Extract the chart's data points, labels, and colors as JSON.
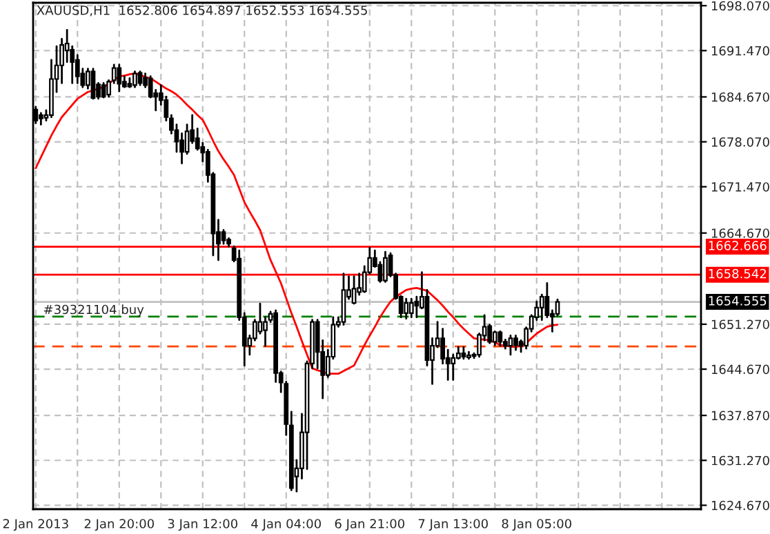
{
  "chart_data": {
    "type": "candlestick",
    "title": "XAUUSD,H1  1652.806 1654.897 1652.553 1654.555",
    "categories": [
      "2 Jan 2013",
      null,
      null,
      null,
      null,
      null,
      null,
      null,
      null,
      null,
      null,
      null,
      null,
      null,
      null,
      null,
      "2 Jan 20:00",
      null,
      null,
      null,
      null,
      null,
      null,
      null,
      null,
      null,
      null,
      null,
      null,
      null,
      null,
      null,
      "3 Jan 12:00",
      null,
      null,
      null,
      null,
      null,
      null,
      null,
      null,
      null,
      null,
      null,
      null,
      null,
      null,
      null,
      "4 Jan 04:00",
      null,
      null,
      null,
      null,
      null,
      null,
      null,
      null,
      null,
      null,
      null,
      null,
      null,
      null,
      null,
      "6 Jan 21:00",
      null,
      null,
      null,
      null,
      null,
      null,
      null,
      null,
      null,
      null,
      null,
      null,
      null,
      null,
      null,
      "7 Jan 13:00",
      null,
      null,
      null,
      null,
      null,
      null,
      null,
      null,
      null,
      null,
      null,
      null,
      null,
      null,
      null,
      "8 Jan 05:00",
      null,
      null,
      null,
      null,
      null,
      null,
      null,
      null,
      null,
      null,
      null,
      null,
      null,
      null,
      null,
      null,
      null,
      null,
      null,
      null,
      null,
      null,
      null,
      null,
      null,
      null,
      null,
      null,
      null,
      null,
      null
    ],
    "ohlc": [
      [
        1682.8,
        1683.2,
        1680.8,
        1681.2
      ],
      [
        1682.0,
        1682.3,
        1680.6,
        1681.5
      ],
      [
        1681.6,
        1682.7,
        1681.2,
        1682.0
      ],
      [
        1682.0,
        1690.1,
        1681.7,
        1687.3
      ],
      [
        1687.3,
        1692.1,
        1685.4,
        1689.3
      ],
      [
        1689.3,
        1693.2,
        1686.7,
        1692.3
      ],
      [
        1691.5,
        1694.5,
        1689.8,
        1692.5
      ],
      [
        1691.6,
        1692.1,
        1686.7,
        1689.8
      ],
      [
        1690.1,
        1690.8,
        1686.7,
        1687.7
      ],
      [
        1688.1,
        1688.8,
        1686.1,
        1686.4
      ],
      [
        1686.4,
        1688.8,
        1685.9,
        1688.4
      ],
      [
        1688.4,
        1688.8,
        1684.4,
        1684.5
      ],
      [
        1686.5,
        1686.7,
        1684.4,
        1684.7
      ],
      [
        1686.4,
        1686.7,
        1684.6,
        1684.7
      ],
      [
        1685.0,
        1687.1,
        1684.7,
        1686.9
      ],
      [
        1687.1,
        1689.4,
        1686.7,
        1688.9
      ],
      [
        1688.9,
        1689.4,
        1685.5,
        1686.6
      ],
      [
        1686.9,
        1687.7,
        1686.1,
        1686.2
      ],
      [
        1686.6,
        1687.4,
        1686.1,
        1686.2
      ],
      [
        1686.4,
        1688.4,
        1686.1,
        1688.1
      ],
      [
        1688.2,
        1688.4,
        1686.4,
        1686.7
      ],
      [
        1687.5,
        1688.1,
        1686.1,
        1686.4
      ],
      [
        1687.4,
        1687.7,
        1684.6,
        1684.7
      ],
      [
        1685.2,
        1685.7,
        1682.7,
        1684.7
      ],
      [
        1685.2,
        1686.4,
        1683.5,
        1684.2
      ],
      [
        1684.2,
        1684.7,
        1681.2,
        1681.7
      ],
      [
        1681.5,
        1682.0,
        1679.3,
        1679.8
      ],
      [
        1679.8,
        1680.6,
        1676.6,
        1678.1
      ],
      [
        1678.3,
        1679.3,
        1674.9,
        1676.6
      ],
      [
        1676.6,
        1680.6,
        1676.3,
        1679.6
      ],
      [
        1679.8,
        1682.0,
        1677.9,
        1678.2
      ],
      [
        1678.6,
        1680.0,
        1676.9,
        1677.1
      ],
      [
        1677.3,
        1677.9,
        1675.2,
        1676.5
      ],
      [
        1676.6,
        1676.9,
        1672.2,
        1673.2
      ],
      [
        1673.3,
        1673.5,
        1661.4,
        1664.6
      ],
      [
        1664.8,
        1666.6,
        1660.7,
        1663.1
      ],
      [
        1664.8,
        1665.1,
        1663.1,
        1663.6
      ],
      [
        1663.7,
        1663.9,
        1662.7,
        1663.1
      ],
      [
        1662.4,
        1662.7,
        1660.5,
        1660.7
      ],
      [
        1660.9,
        1662.1,
        1651.9,
        1652.3
      ],
      [
        1652.3,
        1652.9,
        1645.2,
        1648.1
      ],
      [
        1648.1,
        1649.6,
        1646.8,
        1649.2
      ],
      [
        1649.2,
        1651.9,
        1648.9,
        1651.6
      ],
      [
        1650.2,
        1654.3,
        1649.9,
        1651.6
      ],
      [
        1650.4,
        1652.3,
        1648.1,
        1651.6
      ],
      [
        1651.9,
        1653.1,
        1651.6,
        1652.8
      ],
      [
        1652.9,
        1653.3,
        1642.8,
        1644.1
      ],
      [
        1644.1,
        1644.3,
        1641.3,
        1642.7
      ],
      [
        1642.5,
        1642.8,
        1635.0,
        1636.6
      ],
      [
        1636.4,
        1638.4,
        1626.9,
        1627.2
      ],
      [
        1628.9,
        1631.3,
        1626.7,
        1630.1
      ],
      [
        1630.1,
        1638.1,
        1628.6,
        1635.4
      ],
      [
        1635.4,
        1645.8,
        1630.0,
        1645.5
      ],
      [
        1645.5,
        1651.9,
        1644.8,
        1651.6
      ],
      [
        1651.6,
        1651.9,
        1644.8,
        1647.2
      ],
      [
        1647.2,
        1648.9,
        1640.4,
        1643.8
      ],
      [
        1643.8,
        1647.5,
        1643.5,
        1646.5
      ],
      [
        1646.5,
        1652.3,
        1646.2,
        1651.2
      ],
      [
        1651.2,
        1652.3,
        1650.9,
        1651.6
      ],
      [
        1651.6,
        1658.7,
        1651.2,
        1656.3
      ],
      [
        1655.3,
        1658.3,
        1655.0,
        1656.3
      ],
      [
        1654.4,
        1658.3,
        1654.3,
        1656.5
      ],
      [
        1656.0,
        1658.7,
        1655.6,
        1656.6
      ],
      [
        1656.1,
        1659.8,
        1656.0,
        1658.9
      ],
      [
        1658.9,
        1662.5,
        1658.7,
        1661.0
      ],
      [
        1661.0,
        1662.1,
        1659.7,
        1659.8
      ],
      [
        1660.0,
        1660.4,
        1657.5,
        1657.7
      ],
      [
        1657.7,
        1661.9,
        1657.5,
        1661.0
      ],
      [
        1661.4,
        1661.7,
        1658.3,
        1658.5
      ],
      [
        1658.5,
        1658.7,
        1655.0,
        1655.1
      ],
      [
        1655.3,
        1655.4,
        1652.3,
        1652.9
      ],
      [
        1652.9,
        1655.0,
        1652.1,
        1654.4
      ],
      [
        1652.9,
        1655.0,
        1652.3,
        1654.4
      ],
      [
        1654.6,
        1655.3,
        1652.3,
        1654.0
      ],
      [
        1653.7,
        1658.9,
        1653.6,
        1655.3
      ],
      [
        1655.3,
        1656.3,
        1645.2,
        1646.0
      ],
      [
        1646.0,
        1649.2,
        1642.5,
        1648.1
      ],
      [
        1648.1,
        1651.6,
        1647.9,
        1649.2
      ],
      [
        1649.2,
        1650.6,
        1645.5,
        1646.2
      ],
      [
        1646.3,
        1647.5,
        1643.1,
        1645.5
      ],
      [
        1645.5,
        1646.8,
        1643.1,
        1646.3
      ],
      [
        1646.3,
        1647.9,
        1646.2,
        1647.0
      ],
      [
        1647.0,
        1647.9,
        1646.2,
        1646.5
      ],
      [
        1646.4,
        1647.2,
        1646.2,
        1646.7
      ],
      [
        1646.8,
        1647.0,
        1646.3,
        1646.6
      ],
      [
        1646.8,
        1649.9,
        1646.5,
        1649.7
      ],
      [
        1649.6,
        1652.6,
        1648.9,
        1650.9
      ],
      [
        1651.0,
        1651.2,
        1648.5,
        1648.7
      ],
      [
        1648.7,
        1650.2,
        1648.2,
        1650.1
      ],
      [
        1650.1,
        1650.2,
        1648.1,
        1648.7
      ],
      [
        1648.7,
        1649.0,
        1647.7,
        1648.1
      ],
      [
        1648.1,
        1649.6,
        1646.8,
        1649.2
      ],
      [
        1649.2,
        1649.6,
        1647.5,
        1648.2
      ],
      [
        1648.7,
        1648.9,
        1647.2,
        1648.1
      ],
      [
        1648.1,
        1650.8,
        1647.7,
        1650.6
      ],
      [
        1650.6,
        1652.6,
        1650.2,
        1652.4
      ],
      [
        1652.3,
        1654.6,
        1651.9,
        1653.7
      ],
      [
        1653.7,
        1655.6,
        1651.9,
        1655.3
      ],
      [
        1655.3,
        1657.3,
        1652.3,
        1652.6
      ],
      [
        1652.8,
        1653.3,
        1650.2,
        1652.4
      ],
      [
        1652.806,
        1654.897,
        1652.553,
        1654.555
      ],
      null,
      null,
      null,
      null,
      null,
      null,
      null,
      null,
      null,
      null,
      null,
      null,
      null,
      null,
      null,
      null,
      null,
      null,
      null,
      null,
      null,
      null,
      null,
      null,
      null,
      null,
      null
    ],
    "series": [
      {
        "type": "line",
        "color": "#ff0000",
        "values": [
          1674.2,
          1675.8,
          1677.4,
          1679.0,
          1680.4,
          1681.7,
          1682.6,
          1683.5,
          1684.4,
          1684.9,
          1685.4,
          1685.6,
          1685.9,
          1686.1,
          1686.6,
          1687.2,
          1687.7,
          1687.8,
          1688.0,
          1688.1,
          1687.9,
          1687.6,
          1687.4,
          1686.9,
          1686.4,
          1685.9,
          1685.5,
          1685.0,
          1684.3,
          1683.5,
          1682.8,
          1682.0,
          1681.3,
          1679.8,
          1678.2,
          1676.7,
          1675.5,
          1674.4,
          1673.2,
          1671.2,
          1669.2,
          1667.8,
          1666.5,
          1665.1,
          1662.9,
          1660.7,
          1659.0,
          1657.3,
          1655.1,
          1652.9,
          1650.9,
          1648.8,
          1646.8,
          1644.8,
          1644.5,
          1644.3,
          1644.0,
          1644.0,
          1644.0,
          1644.4,
          1644.8,
          1645.2,
          1646.7,
          1648.2,
          1649.6,
          1650.9,
          1652.3,
          1653.5,
          1654.6,
          1655.3,
          1655.8,
          1656.3,
          1656.5,
          1656.6,
          1656.4,
          1656.2,
          1655.5,
          1654.8,
          1654.0,
          1653.1,
          1652.3,
          1651.4,
          1650.6,
          1649.9,
          1649.2,
          1649.1,
          1649.0,
          1648.9,
          1648.6,
          1648.2,
          1648.1,
          1648.0,
          1647.9,
          1648.2,
          1648.5,
          1649.2,
          1649.9,
          1650.4,
          1650.9,
          1651.1,
          1651.2,
          null,
          null,
          null,
          null,
          null,
          null,
          null,
          null,
          null,
          null,
          null,
          null,
          null,
          null,
          null,
          null,
          null,
          null,
          null,
          null,
          null,
          null,
          null,
          null,
          null,
          null,
          null
        ]
      }
    ],
    "ylim": [
      1624.1,
      1698.5
    ],
    "yticks": [
      {
        "value": 1624.67,
        "label": "1624.670"
      },
      {
        "value": 1631.27,
        "label": "1631.270"
      },
      {
        "value": 1637.87,
        "label": "1637.870"
      },
      {
        "value": 1644.67,
        "label": "1644.670"
      },
      {
        "value": 1651.27,
        "label": "1651.270"
      },
      {
        "value": 1664.67,
        "label": "1664.670"
      },
      {
        "value": 1671.47,
        "label": "1671.470"
      },
      {
        "value": 1678.07,
        "label": "1678.070"
      },
      {
        "value": 1684.67,
        "label": "1684.670"
      },
      {
        "value": 1691.47,
        "label": "1691.470"
      },
      {
        "value": 1698.07,
        "label": "1698.070"
      }
    ],
    "ref_lines": [
      {
        "axis": "y",
        "value": 1662.666,
        "label": "1662.666",
        "color": "#ff0000",
        "line_style": "solid"
      },
      {
        "axis": "y",
        "value": 1658.542,
        "label": "1658.542",
        "color": "#ff0000",
        "line_style": "solid"
      },
      {
        "axis": "y",
        "value": 1654.555,
        "label": "1654.555",
        "color": "#c0c0c0",
        "line_style": "solid"
      },
      {
        "axis": "y",
        "value": 1652.4,
        "color": "#008000",
        "line_style": "dashed"
      },
      {
        "axis": "y",
        "value": 1648.0,
        "color": "#ff4500",
        "line_style": "dashed"
      }
    ],
    "annotations": [
      {
        "text": "#39321104 buy",
        "y": 1652.4
      }
    ],
    "grid": true
  }
}
